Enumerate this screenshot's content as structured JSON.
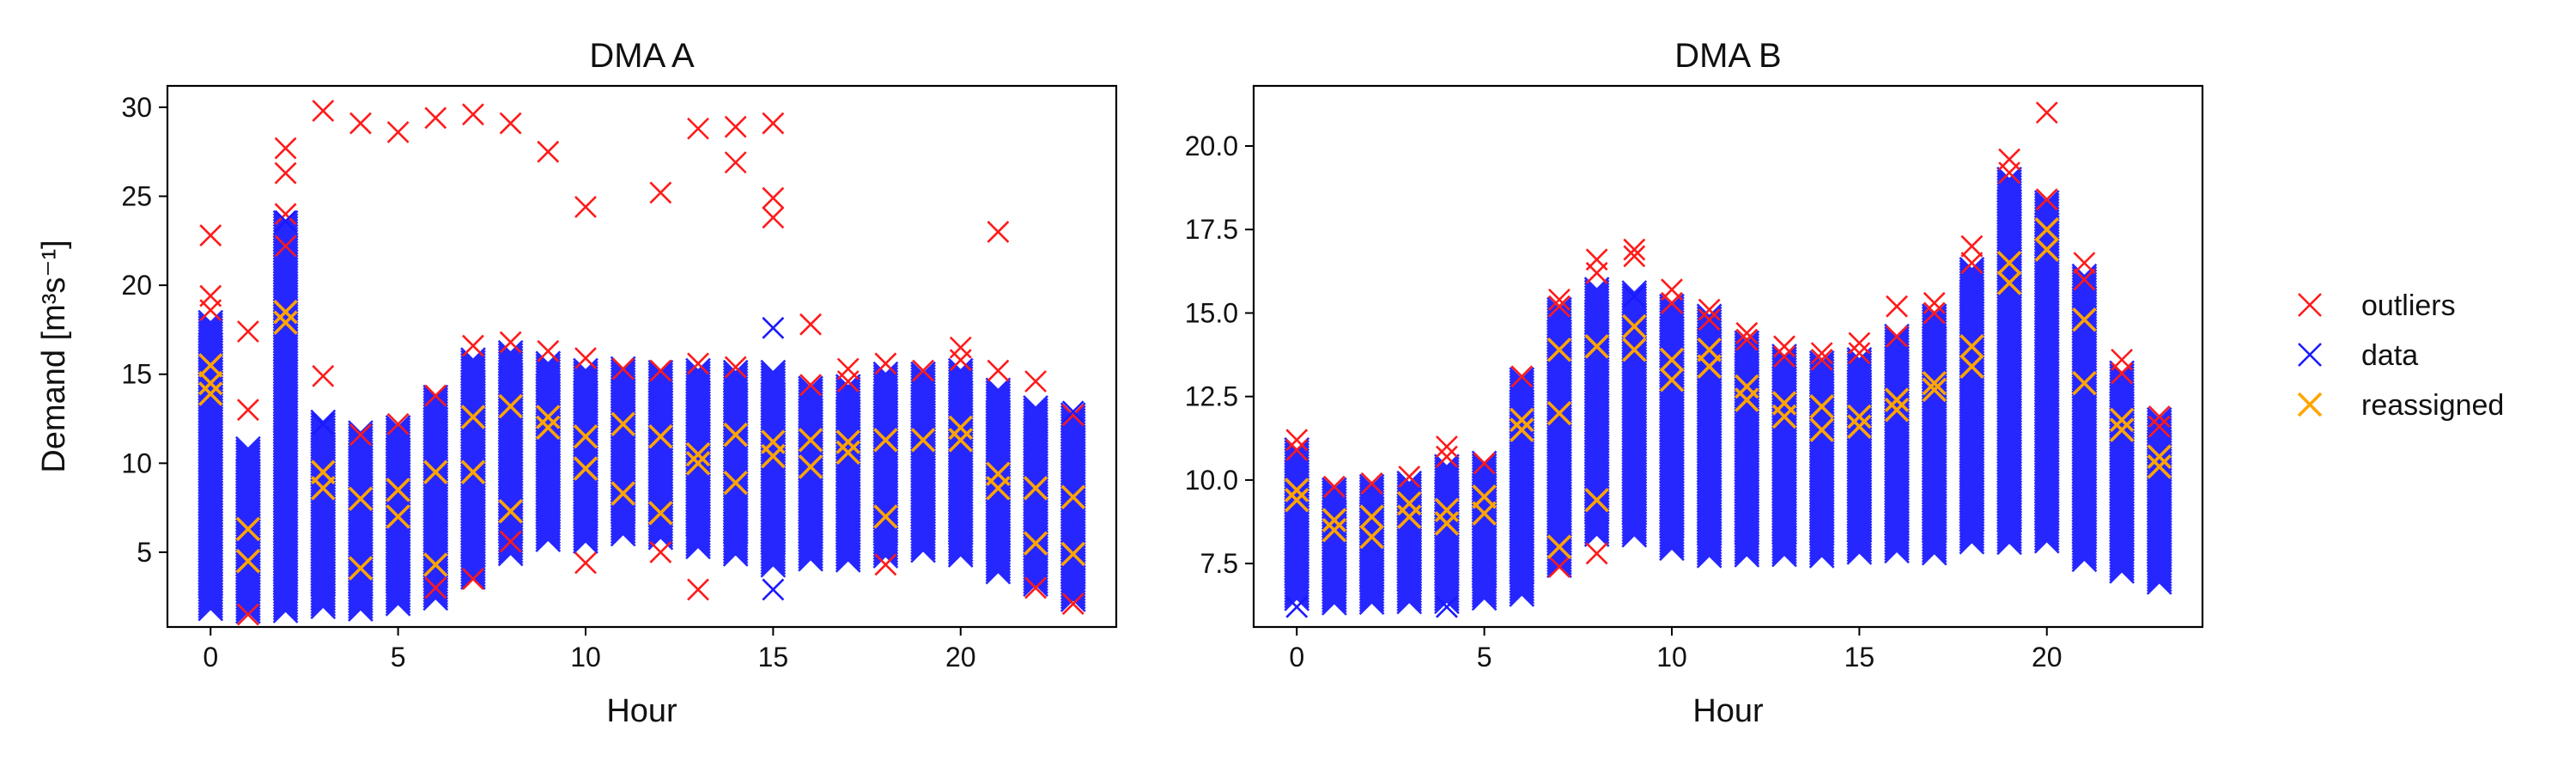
{
  "chart_data": [
    {
      "type": "scatter",
      "title": "DMA A",
      "xlabel": "Hour",
      "ylabel": "Demand [m³s⁻¹]",
      "xlim": [
        -1.15,
        24.15
      ],
      "ylim": [
        0.8,
        31.2
      ],
      "xticks": [
        0,
        5,
        10,
        15,
        20
      ],
      "yticks": [
        5,
        10,
        15,
        20,
        25,
        30
      ],
      "data_ranges": {
        "hours": [
          0,
          1,
          2,
          3,
          4,
          5,
          6,
          7,
          8,
          9,
          10,
          11,
          12,
          13,
          14,
          15,
          16,
          17,
          18,
          19,
          20,
          21,
          22,
          23
        ],
        "low": [
          1.8,
          1.6,
          1.7,
          1.9,
          1.8,
          2.0,
          2.4,
          3.6,
          4.9,
          5.6,
          5.6,
          5.9,
          5.8,
          5.3,
          4.9,
          4.2,
          4.6,
          4.5,
          4.8,
          5.0,
          4.8,
          3.9,
          3.1,
          2.2
        ],
        "high": [
          17.9,
          10.8,
          23.5,
          12.3,
          11.7,
          12.0,
          13.7,
          15.8,
          16.2,
          15.6,
          15.2,
          15.3,
          15.1,
          15.2,
          15.1,
          15.1,
          14.2,
          14.3,
          15.0,
          15.0,
          15.2,
          14.1,
          13.1,
          12.7
        ]
      },
      "series": [
        {
          "name": "outliers",
          "color": "#ff1a1a",
          "points": [
            [
              0,
              22.8
            ],
            [
              0,
              19.4
            ],
            [
              0,
              18.6
            ],
            [
              1,
              17.4
            ],
            [
              1,
              13.0
            ],
            [
              1,
              1.5
            ],
            [
              2,
              27.7
            ],
            [
              2,
              26.3
            ],
            [
              2,
              24.0
            ],
            [
              2,
              22.2
            ],
            [
              3,
              29.8
            ],
            [
              3,
              14.9
            ],
            [
              4,
              29.1
            ],
            [
              4,
              11.6
            ],
            [
              5,
              28.6
            ],
            [
              5,
              12.2
            ],
            [
              6,
              29.4
            ],
            [
              6,
              13.8
            ],
            [
              6,
              3.0
            ],
            [
              7,
              29.6
            ],
            [
              7,
              16.6
            ],
            [
              7,
              3.5
            ],
            [
              8,
              29.1
            ],
            [
              8,
              16.8
            ],
            [
              8,
              5.6
            ],
            [
              9,
              27.5
            ],
            [
              9,
              16.3
            ],
            [
              10,
              24.4
            ],
            [
              10,
              15.9
            ],
            [
              10,
              4.4
            ],
            [
              11,
              15.3
            ],
            [
              12,
              25.2
            ],
            [
              12,
              15.2
            ],
            [
              12,
              5.0
            ],
            [
              13,
              28.8
            ],
            [
              13,
              15.6
            ],
            [
              13,
              2.9
            ],
            [
              14,
              28.9
            ],
            [
              14,
              26.9
            ],
            [
              14,
              15.4
            ],
            [
              15,
              29.1
            ],
            [
              15,
              24.9
            ],
            [
              15,
              23.8
            ],
            [
              16,
              17.8
            ],
            [
              16,
              14.4
            ],
            [
              17,
              15.3
            ],
            [
              17,
              14.6
            ],
            [
              18,
              15.6
            ],
            [
              18,
              4.3
            ],
            [
              19,
              15.2
            ],
            [
              20,
              16.5
            ],
            [
              20,
              15.8
            ],
            [
              21,
              23.0
            ],
            [
              21,
              15.2
            ],
            [
              22,
              14.6
            ],
            [
              22,
              3.0
            ],
            [
              23,
              12.7
            ],
            [
              23,
              2.1
            ]
          ]
        },
        {
          "name": "data",
          "color": "#1a1aff",
          "points": [
            [
              15,
              17.6
            ],
            [
              15,
              2.9
            ],
            [
              2,
              23.6
            ],
            [
              3,
              12.2
            ],
            [
              23,
              12.9
            ]
          ]
        },
        {
          "name": "reassigned",
          "color": "#ffa500",
          "points": [
            [
              0,
              15.5
            ],
            [
              0,
              14.5
            ],
            [
              0,
              13.9
            ],
            [
              1,
              6.3
            ],
            [
              1,
              4.5
            ],
            [
              2,
              18.5
            ],
            [
              2,
              17.9
            ],
            [
              3,
              8.6
            ],
            [
              3,
              9.5
            ],
            [
              4,
              8.0
            ],
            [
              4,
              4.1
            ],
            [
              5,
              8.5
            ],
            [
              5,
              7.0
            ],
            [
              6,
              9.5
            ],
            [
              6,
              4.3
            ],
            [
              7,
              12.6
            ],
            [
              7,
              9.5
            ],
            [
              8,
              13.2
            ],
            [
              8,
              7.3
            ],
            [
              9,
              12.6
            ],
            [
              9,
              12.0
            ],
            [
              10,
              11.5
            ],
            [
              10,
              9.7
            ],
            [
              11,
              12.2
            ],
            [
              11,
              8.3
            ],
            [
              12,
              11.5
            ],
            [
              12,
              7.2
            ],
            [
              13,
              10.5
            ],
            [
              13,
              10.0
            ],
            [
              14,
              11.6
            ],
            [
              14,
              8.9
            ],
            [
              15,
              11.2
            ],
            [
              15,
              10.4
            ],
            [
              16,
              11.3
            ],
            [
              16,
              9.8
            ],
            [
              17,
              11.2
            ],
            [
              17,
              10.6
            ],
            [
              18,
              11.3
            ],
            [
              18,
              7.0
            ],
            [
              19,
              11.3
            ],
            [
              20,
              12.0
            ],
            [
              20,
              11.3
            ],
            [
              21,
              9.4
            ],
            [
              21,
              8.6
            ],
            [
              22,
              8.6
            ],
            [
              22,
              5.5
            ],
            [
              23,
              8.1
            ],
            [
              23,
              4.9
            ]
          ]
        }
      ]
    },
    {
      "type": "scatter",
      "title": "DMA B",
      "xlabel": "Hour",
      "ylabel": "",
      "xlim": [
        -1.15,
        24.15
      ],
      "ylim": [
        5.6,
        21.8
      ],
      "xticks": [
        0,
        5,
        10,
        15,
        20
      ],
      "yticks": [
        7.5,
        10.0,
        12.5,
        15.0,
        17.5,
        20.0
      ],
      "data_ranges": {
        "hours": [
          0,
          1,
          2,
          3,
          4,
          5,
          6,
          7,
          8,
          9,
          10,
          11,
          12,
          13,
          14,
          15,
          16,
          17,
          18,
          19,
          20,
          21,
          22,
          23
        ],
        "low": [
          6.4,
          6.3,
          6.3,
          6.3,
          6.3,
          6.4,
          6.5,
          7.4,
          8.3,
          8.3,
          7.9,
          7.7,
          7.7,
          7.7,
          7.7,
          7.8,
          7.8,
          7.8,
          8.1,
          8.1,
          8.1,
          7.6,
          7.2,
          6.9
        ],
        "high": [
          10.9,
          9.7,
          9.8,
          9.9,
          10.4,
          10.5,
          13.0,
          15.1,
          15.7,
          15.6,
          15.2,
          14.9,
          14.1,
          13.7,
          13.5,
          13.6,
          14.3,
          14.9,
          16.3,
          19.0,
          18.3,
          16.1,
          13.2,
          11.8
        ]
      },
      "series": [
        {
          "name": "outliers",
          "color": "#ff1a1a",
          "points": [
            [
              0,
              11.2
            ],
            [
              0,
              10.9
            ],
            [
              1,
              9.8
            ],
            [
              2,
              9.9
            ],
            [
              3,
              10.1
            ],
            [
              4,
              11.0
            ],
            [
              4,
              10.7
            ],
            [
              5,
              10.5
            ],
            [
              6,
              13.1
            ],
            [
              7,
              15.4
            ],
            [
              7,
              15.2
            ],
            [
              7,
              7.4
            ],
            [
              8,
              16.6
            ],
            [
              8,
              16.2
            ],
            [
              8,
              7.8
            ],
            [
              9,
              16.9
            ],
            [
              9,
              16.7
            ],
            [
              10,
              15.7
            ],
            [
              10,
              15.3
            ],
            [
              11,
              15.1
            ],
            [
              11,
              14.8
            ],
            [
              12,
              14.4
            ],
            [
              12,
              14.2
            ],
            [
              13,
              14.0
            ],
            [
              13,
              13.7
            ],
            [
              14,
              13.8
            ],
            [
              14,
              13.6
            ],
            [
              15,
              14.1
            ],
            [
              15,
              13.8
            ],
            [
              16,
              15.2
            ],
            [
              16,
              14.3
            ],
            [
              17,
              15.3
            ],
            [
              17,
              15.0
            ],
            [
              18,
              17.0
            ],
            [
              18,
              16.5
            ],
            [
              19,
              19.6
            ],
            [
              19,
              19.2
            ],
            [
              20,
              21.0
            ],
            [
              20,
              18.4
            ],
            [
              21,
              16.5
            ],
            [
              21,
              16.0
            ],
            [
              22,
              13.6
            ],
            [
              22,
              13.2
            ],
            [
              23,
              11.9
            ],
            [
              23,
              11.6
            ]
          ]
        },
        {
          "name": "data",
          "color": "#1a1aff",
          "points": [
            [
              0,
              6.2
            ],
            [
              4,
              6.2
            ],
            [
              9,
              15.5
            ]
          ]
        },
        {
          "name": "reassigned",
          "color": "#ffa500",
          "points": [
            [
              0,
              9.7
            ],
            [
              0,
              9.4
            ],
            [
              1,
              8.8
            ],
            [
              1,
              8.5
            ],
            [
              2,
              8.9
            ],
            [
              2,
              8.3
            ],
            [
              3,
              9.3
            ],
            [
              3,
              8.9
            ],
            [
              4,
              9.1
            ],
            [
              4,
              8.7
            ],
            [
              5,
              9.5
            ],
            [
              5,
              9.0
            ],
            [
              6,
              11.8
            ],
            [
              6,
              11.5
            ],
            [
              7,
              13.9
            ],
            [
              7,
              12.0
            ],
            [
              7,
              8.0
            ],
            [
              8,
              14.0
            ],
            [
              8,
              9.4
            ],
            [
              9,
              14.6
            ],
            [
              9,
              13.9
            ],
            [
              10,
              13.6
            ],
            [
              10,
              13.0
            ],
            [
              11,
              13.9
            ],
            [
              11,
              13.4
            ],
            [
              12,
              12.8
            ],
            [
              12,
              12.4
            ],
            [
              13,
              12.3
            ],
            [
              13,
              11.9
            ],
            [
              14,
              12.2
            ],
            [
              14,
              11.5
            ],
            [
              15,
              11.9
            ],
            [
              15,
              11.6
            ],
            [
              16,
              12.4
            ],
            [
              16,
              12.1
            ],
            [
              17,
              12.9
            ],
            [
              17,
              12.7
            ],
            [
              18,
              14.0
            ],
            [
              18,
              13.4
            ],
            [
              19,
              16.5
            ],
            [
              19,
              15.9
            ],
            [
              20,
              17.5
            ],
            [
              20,
              16.9
            ],
            [
              21,
              14.8
            ],
            [
              21,
              12.9
            ],
            [
              22,
              11.8
            ],
            [
              22,
              11.5
            ],
            [
              23,
              10.7
            ],
            [
              23,
              10.4
            ]
          ]
        }
      ]
    }
  ],
  "legend": {
    "placement": "right",
    "items": [
      {
        "label": "outliers",
        "color": "#ff1a1a"
      },
      {
        "label": "data",
        "color": "#1a1aff"
      },
      {
        "label": "reassigned",
        "color": "#ffa500"
      }
    ]
  }
}
